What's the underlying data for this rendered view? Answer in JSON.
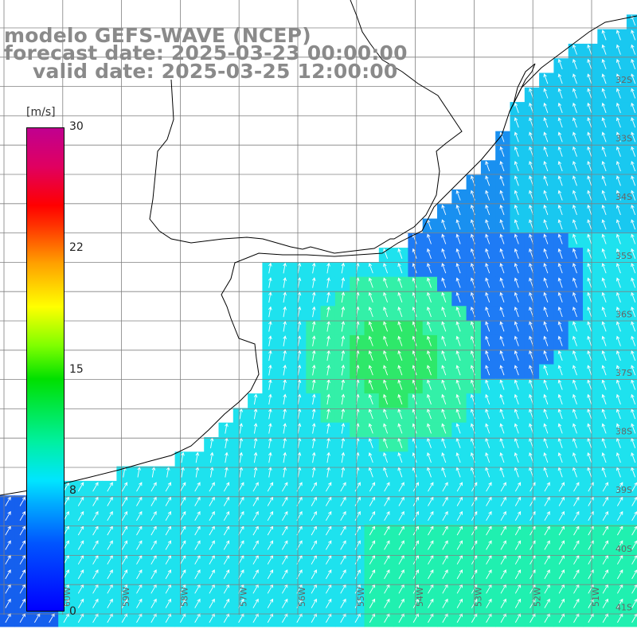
{
  "title": {
    "model": "modelo GEFS-WAVE (NCEP)",
    "forecast": "forecast date: 2025-03-23 00:00:00",
    "valid": "valid date: 2025-03-25 12:00:00"
  },
  "colorbar": {
    "unit": "[m/s]",
    "ticks": [
      "30",
      "22",
      "15",
      "8",
      "0"
    ],
    "min": 0,
    "max": 30
  },
  "latitude_labels": [
    "32S",
    "33S",
    "34S",
    "35S",
    "36S",
    "37S",
    "38S",
    "39S",
    "40S",
    "41S"
  ],
  "longitude_labels": [
    "60W",
    "59W",
    "58W",
    "57W",
    "56W",
    "55W",
    "54W",
    "53W",
    "52W",
    "51W"
  ],
  "colors": {
    "grid": "#808080",
    "coast": "#000000",
    "arrow": "#ffffff",
    "title": "#8a8a8a"
  }
}
